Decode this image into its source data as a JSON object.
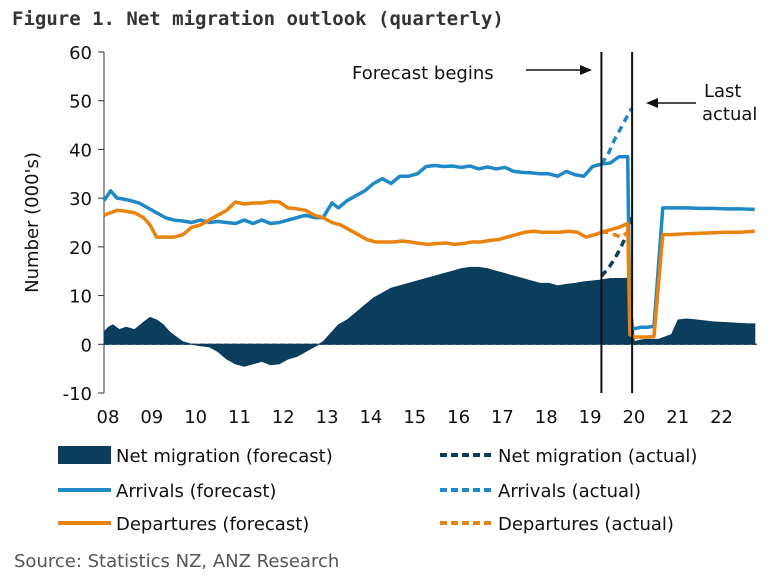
{
  "title": "Figure 1. Net migration outlook (quarterly)",
  "source": "Source: Statistics NZ, ANZ Research",
  "annotations": {
    "forecast_begins": "Forecast begins",
    "last_actual_1": "Last",
    "last_actual_2": "actual"
  },
  "colors": {
    "net": "#0b3d5c",
    "arrivals": "#1f88c6",
    "departures": "#e8830f"
  },
  "chart_data": {
    "type": "line",
    "xlabel": "",
    "ylabel": "Number (000's)",
    "ylim": [
      -10,
      60
    ],
    "xlim": [
      2008,
      2022.9
    ],
    "yticks": [
      "-10",
      "0",
      "10",
      "20",
      "30",
      "40",
      "50",
      "60"
    ],
    "xtick_values": [
      2008,
      2009,
      2010,
      2011,
      2012,
      2013,
      2014,
      2015,
      2016,
      2017,
      2018,
      2019,
      2020,
      2021,
      2022
    ],
    "xtick_labels": [
      "08",
      "09",
      "10",
      "11",
      "12",
      "13",
      "14",
      "15",
      "16",
      "17",
      "18",
      "19",
      "20",
      "21",
      "22"
    ],
    "vlines": [
      2019.35,
      2020.05
    ],
    "legend": [
      "Net migration (forecast)",
      "Net migration (actual)",
      "Arrivals (forecast)",
      "Arrivals (actual)",
      "Departures (forecast)",
      "Departures (actual)"
    ],
    "series": [
      {
        "name": "Net migration (forecast)",
        "style": "area",
        "x": [
          2008.0,
          2008.1,
          2008.2,
          2008.35,
          2008.5,
          2008.7,
          2008.9,
          2009.05,
          2009.2,
          2009.35,
          2009.5,
          2009.65,
          2009.8,
          2010.0,
          2010.2,
          2010.4,
          2010.6,
          2010.8,
          2011.0,
          2011.2,
          2011.4,
          2011.6,
          2011.8,
          2012.0,
          2012.2,
          2012.4,
          2012.6,
          2012.8,
          2013.0,
          2013.2,
          2013.35,
          2013.55,
          2013.75,
          2013.95,
          2014.15,
          2014.35,
          2014.55,
          2014.75,
          2014.95,
          2015.15,
          2015.35,
          2015.55,
          2015.75,
          2015.95,
          2016.15,
          2016.35,
          2016.55,
          2016.75,
          2016.95,
          2017.15,
          2017.35,
          2017.55,
          2017.75,
          2017.95,
          2018.15,
          2018.35,
          2018.55,
          2018.75,
          2018.95,
          2019.15,
          2019.35,
          2019.55,
          2019.75,
          2019.9,
          2020.0,
          2020.1,
          2020.2,
          2020.35,
          2020.5,
          2020.65,
          2020.8,
          2020.95,
          2021.1,
          2021.3,
          2021.5,
          2021.7,
          2021.9,
          2022.1,
          2022.3,
          2022.5,
          2022.7,
          2022.85
        ],
        "values": [
          2.5,
          3.5,
          4.0,
          3.0,
          3.5,
          3.0,
          4.5,
          5.5,
          5.0,
          4.0,
          2.5,
          1.5,
          0.5,
          0.0,
          -0.3,
          -0.5,
          -1.5,
          -3.0,
          -4.0,
          -4.5,
          -4.0,
          -3.5,
          -4.2,
          -4.0,
          -3.0,
          -2.5,
          -1.5,
          -0.5,
          0.5,
          2.5,
          4.0,
          5.0,
          6.5,
          8.0,
          9.5,
          10.5,
          11.5,
          12.0,
          12.5,
          13.0,
          13.5,
          14.0,
          14.5,
          15.0,
          15.5,
          15.8,
          15.8,
          15.5,
          15.0,
          14.5,
          14.0,
          13.5,
          13.0,
          12.5,
          12.5,
          12.0,
          12.3,
          12.5,
          12.8,
          13.0,
          13.2,
          13.5,
          13.5,
          13.5,
          13.8,
          0.5,
          0.8,
          1.0,
          1.0,
          1.0,
          1.5,
          2.0,
          5.0,
          5.2,
          5.0,
          4.8,
          4.6,
          4.5,
          4.4,
          4.3,
          4.2,
          4.2
        ]
      },
      {
        "name": "Net migration (actual)",
        "style": "dashed",
        "x": [
          2019.35,
          2019.5,
          2019.65,
          2019.8,
          2019.95,
          2020.05
        ],
        "values": [
          14.0,
          15.5,
          17.5,
          20.0,
          23.0,
          26.5
        ]
      },
      {
        "name": "Arrivals (forecast)",
        "style": "solid",
        "x": [
          2008.0,
          2008.15,
          2008.3,
          2008.45,
          2008.6,
          2008.8,
          2009.0,
          2009.2,
          2009.4,
          2009.6,
          2009.8,
          2010.0,
          2010.2,
          2010.4,
          2010.6,
          2010.8,
          2011.0,
          2011.2,
          2011.4,
          2011.6,
          2011.8,
          2012.0,
          2012.2,
          2012.4,
          2012.6,
          2012.8,
          2013.0,
          2013.2,
          2013.35,
          2013.55,
          2013.75,
          2013.95,
          2014.15,
          2014.35,
          2014.55,
          2014.75,
          2014.95,
          2015.15,
          2015.35,
          2015.55,
          2015.75,
          2015.95,
          2016.15,
          2016.35,
          2016.55,
          2016.75,
          2016.95,
          2017.15,
          2017.35,
          2017.55,
          2017.75,
          2017.95,
          2018.15,
          2018.35,
          2018.55,
          2018.75,
          2018.95,
          2019.15,
          2019.35,
          2019.55,
          2019.75,
          2019.95,
          2020.0,
          2020.1,
          2020.25,
          2020.4,
          2020.55,
          2020.75,
          2020.95,
          2021.1,
          2021.3,
          2021.6,
          2021.9,
          2022.2,
          2022.5,
          2022.85
        ],
        "values": [
          29.5,
          31.5,
          30.0,
          29.8,
          29.5,
          29.0,
          28.0,
          27.0,
          26.0,
          25.5,
          25.3,
          25.0,
          25.5,
          25.0,
          25.2,
          25.0,
          24.8,
          25.5,
          24.8,
          25.5,
          24.8,
          25.0,
          25.5,
          26.0,
          26.5,
          26.0,
          26.0,
          29.0,
          28.0,
          29.5,
          30.5,
          31.5,
          33.0,
          34.0,
          33.0,
          34.5,
          34.5,
          35.0,
          36.5,
          36.7,
          36.5,
          36.6,
          36.3,
          36.6,
          36.0,
          36.4,
          36.0,
          36.3,
          35.5,
          35.3,
          35.2,
          35.0,
          35.0,
          34.5,
          35.5,
          34.8,
          34.5,
          36.5,
          37.0,
          37.2,
          38.5,
          38.5,
          3.0,
          3.2,
          3.5,
          3.5,
          3.7,
          28.0,
          28.0,
          28.0,
          28.0,
          27.9,
          27.9,
          27.8,
          27.8,
          27.7
        ]
      },
      {
        "name": "Arrivals (actual)",
        "style": "dashed",
        "x": [
          2019.35,
          2019.5,
          2019.65,
          2019.8,
          2019.95,
          2020.05
        ],
        "values": [
          37.0,
          39.0,
          42.0,
          44.5,
          47.0,
          48.5
        ]
      },
      {
        "name": "Departures (forecast)",
        "style": "solid",
        "x": [
          2008.0,
          2008.15,
          2008.3,
          2008.5,
          2008.7,
          2008.9,
          2009.05,
          2009.2,
          2009.4,
          2009.6,
          2009.8,
          2010.0,
          2010.2,
          2010.4,
          2010.6,
          2010.8,
          2011.0,
          2011.2,
          2011.4,
          2011.6,
          2011.8,
          2012.0,
          2012.2,
          2012.4,
          2012.6,
          2012.8,
          2013.0,
          2013.2,
          2013.4,
          2013.6,
          2013.8,
          2014.0,
          2014.2,
          2014.4,
          2014.6,
          2014.8,
          2015.0,
          2015.2,
          2015.4,
          2015.6,
          2015.8,
          2016.0,
          2016.2,
          2016.4,
          2016.6,
          2016.8,
          2017.0,
          2017.2,
          2017.4,
          2017.6,
          2017.8,
          2018.0,
          2018.2,
          2018.4,
          2018.6,
          2018.8,
          2019.0,
          2019.2,
          2019.35,
          2019.55,
          2019.75,
          2019.95,
          2020.0,
          2020.1,
          2020.25,
          2020.4,
          2020.55,
          2020.75,
          2020.95,
          2021.1,
          2021.3,
          2021.6,
          2021.9,
          2022.2,
          2022.5,
          2022.85
        ],
        "values": [
          26.5,
          27.0,
          27.5,
          27.3,
          27.0,
          26.0,
          24.5,
          22.0,
          22.0,
          22.0,
          22.5,
          24.0,
          24.5,
          25.5,
          26.5,
          27.5,
          29.2,
          28.8,
          29.0,
          29.0,
          29.3,
          29.2,
          28.0,
          27.8,
          27.5,
          26.5,
          26.0,
          25.0,
          24.5,
          23.5,
          22.5,
          21.5,
          21.0,
          21.0,
          21.0,
          21.2,
          21.0,
          20.7,
          20.5,
          20.7,
          20.8,
          20.5,
          20.7,
          21.0,
          21.0,
          21.3,
          21.5,
          22.0,
          22.5,
          23.0,
          23.2,
          23.0,
          23.0,
          23.0,
          23.2,
          23.0,
          22.0,
          22.5,
          23.0,
          23.5,
          24.0,
          24.8,
          2.0,
          1.5,
          1.5,
          1.5,
          1.6,
          22.5,
          22.5,
          22.6,
          22.7,
          22.8,
          22.9,
          23.0,
          23.0,
          23.2
        ]
      },
      {
        "name": "Departures (actual)",
        "style": "dashed",
        "x": [
          2019.35,
          2019.5,
          2019.65,
          2019.8,
          2019.95,
          2020.05
        ],
        "values": [
          23.0,
          23.0,
          22.5,
          22.0,
          23.0,
          24.0
        ]
      }
    ]
  }
}
